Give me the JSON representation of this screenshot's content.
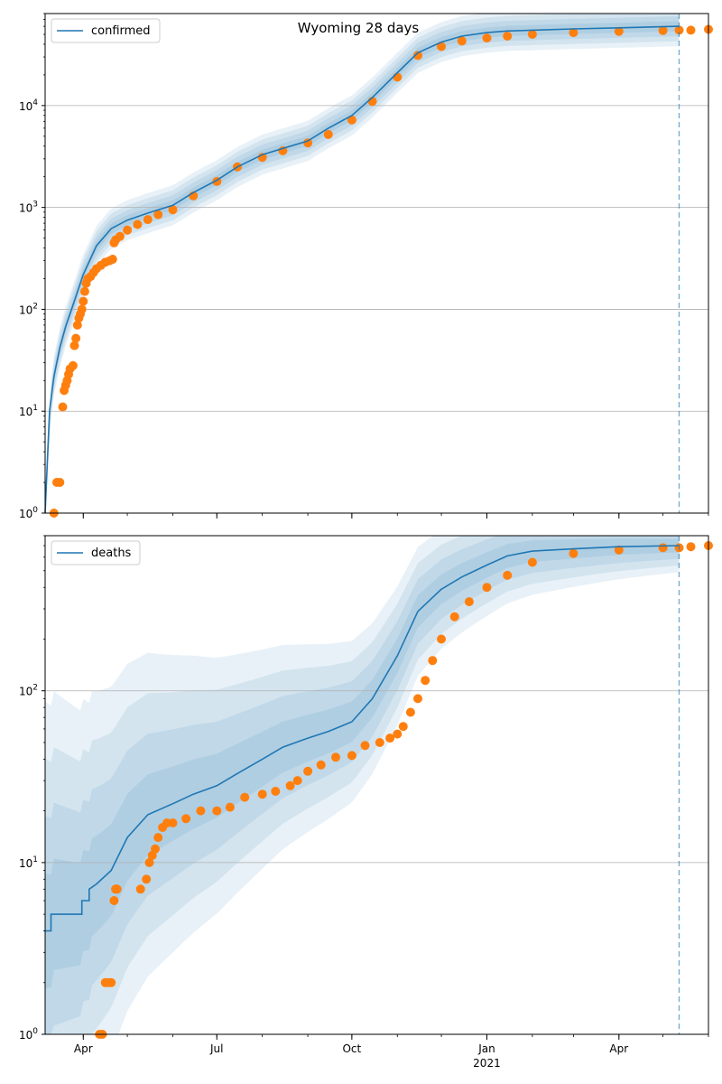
{
  "figure": {
    "title": "Wyoming 28 days"
  },
  "colors": {
    "model": "#1f77b4",
    "observed": "#ff7f0e",
    "band": "#1f77b4",
    "grid": "#b0b0b0",
    "forecast_line": "#1f77b4"
  },
  "chart_data": [
    {
      "type": "line",
      "name": "confirmed-panel",
      "yscale": "log",
      "ylim": [
        1,
        80000
      ],
      "xlim": [
        "2020-03-06",
        "2021-06-01"
      ],
      "grid": "y-major",
      "legend": {
        "placement": "top-left",
        "entries": [
          "confirmed"
        ]
      },
      "y_ticks": [
        {
          "value": 1,
          "base": "10",
          "exp": "0"
        },
        {
          "value": 10,
          "base": "10",
          "exp": "1"
        },
        {
          "value": 100,
          "base": "10",
          "exp": "2"
        },
        {
          "value": 1000,
          "base": "10",
          "exp": "3"
        },
        {
          "value": 10000,
          "base": "10",
          "exp": "4"
        }
      ],
      "forecast_start": "2021-05-12",
      "series": [
        {
          "name": "confirmed",
          "kind": "model",
          "x": [
            "2020-03-06",
            "2020-03-09",
            "2020-03-12",
            "2020-03-16",
            "2020-03-20",
            "2020-03-25",
            "2020-04-01",
            "2020-04-10",
            "2020-04-20",
            "2020-05-01",
            "2020-05-15",
            "2020-06-01",
            "2020-06-15",
            "2020-07-01",
            "2020-07-15",
            "2020-08-01",
            "2020-08-15",
            "2020-09-01",
            "2020-09-15",
            "2020-10-01",
            "2020-10-15",
            "2020-11-01",
            "2020-11-15",
            "2020-12-01",
            "2020-12-15",
            "2021-01-01",
            "2021-01-15",
            "2021-02-01",
            "2021-03-01",
            "2021-04-01",
            "2021-05-12"
          ],
          "values": [
            1,
            10,
            22,
            42,
            68,
            110,
            220,
            420,
            620,
            750,
            880,
            1050,
            1400,
            1850,
            2500,
            3300,
            3800,
            4500,
            6000,
            8000,
            12000,
            21000,
            33000,
            42000,
            48000,
            52000,
            54000,
            55000,
            56500,
            58000,
            60000
          ]
        },
        {
          "name": "observed confirmed",
          "kind": "points",
          "x": [
            "2020-03-12",
            "2020-03-14",
            "2020-03-16",
            "2020-03-18",
            "2020-03-19",
            "2020-03-20",
            "2020-03-21",
            "2020-03-22",
            "2020-03-23",
            "2020-03-25",
            "2020-03-26",
            "2020-03-27",
            "2020-03-28",
            "2020-03-29",
            "2020-03-30",
            "2020-03-31",
            "2020-04-01",
            "2020-04-02",
            "2020-04-03",
            "2020-04-04",
            "2020-04-06",
            "2020-04-08",
            "2020-04-10",
            "2020-04-13",
            "2020-04-16",
            "2020-04-19",
            "2020-04-21",
            "2020-04-22",
            "2020-04-23",
            "2020-04-26",
            "2020-05-01",
            "2020-05-08",
            "2020-05-15",
            "2020-05-22",
            "2020-06-01",
            "2020-06-15",
            "2020-07-01",
            "2020-07-15",
            "2020-08-01",
            "2020-08-15",
            "2020-09-01",
            "2020-09-15",
            "2020-10-01",
            "2020-10-15",
            "2020-11-01",
            "2020-11-15",
            "2020-12-01",
            "2020-12-15",
            "2021-01-01",
            "2021-01-15",
            "2021-02-01",
            "2021-03-01",
            "2021-04-01",
            "2021-05-01",
            "2021-05-12",
            "2021-05-20",
            "2021-06-01"
          ],
          "values": [
            1,
            2,
            2,
            11,
            16,
            18,
            20,
            23,
            26,
            28,
            44,
            52,
            70,
            82,
            90,
            100,
            120,
            150,
            180,
            200,
            210,
            230,
            250,
            270,
            290,
            300,
            310,
            450,
            480,
            520,
            600,
            680,
            760,
            850,
            950,
            1300,
            1800,
            2500,
            3100,
            3600,
            4300,
            5200,
            7200,
            11000,
            19000,
            31000,
            38000,
            43000,
            46000,
            48000,
            50000,
            52000,
            53500,
            54500,
            55000,
            55000,
            56000
          ]
        }
      ]
    },
    {
      "type": "line",
      "name": "deaths-panel",
      "yscale": "log",
      "ylim": [
        1,
        800
      ],
      "xlim": [
        "2020-03-06",
        "2021-06-01"
      ],
      "grid": "y-major",
      "legend": {
        "placement": "top-left",
        "entries": [
          "deaths"
        ]
      },
      "y_ticks": [
        {
          "value": 1,
          "base": "10",
          "exp": "0"
        },
        {
          "value": 10,
          "base": "10",
          "exp": "1"
        },
        {
          "value": 100,
          "base": "10",
          "exp": "2"
        }
      ],
      "x_ticks": [
        {
          "date": "2020-04-01",
          "label": "Apr",
          "sub": ""
        },
        {
          "date": "2020-07-01",
          "label": "Jul",
          "sub": ""
        },
        {
          "date": "2020-10-01",
          "label": "Oct",
          "sub": ""
        },
        {
          "date": "2021-01-01",
          "label": "Jan",
          "sub": "2021"
        },
        {
          "date": "2021-04-01",
          "label": "Apr",
          "sub": ""
        }
      ],
      "forecast_start": "2021-05-12",
      "series": [
        {
          "name": "deaths",
          "kind": "model",
          "x": [
            "2020-03-06",
            "2020-03-10",
            "2020-03-10",
            "2020-03-31",
            "2020-03-31",
            "2020-04-05",
            "2020-04-05",
            "2020-04-10",
            "2020-04-20",
            "2020-05-01",
            "2020-05-15",
            "2020-06-01",
            "2020-06-15",
            "2020-07-01",
            "2020-07-15",
            "2020-08-01",
            "2020-08-15",
            "2020-09-01",
            "2020-09-15",
            "2020-10-01",
            "2020-10-15",
            "2020-11-01",
            "2020-11-15",
            "2020-12-01",
            "2020-12-15",
            "2021-01-01",
            "2021-01-15",
            "2021-02-01",
            "2021-03-01",
            "2021-04-01",
            "2021-05-12"
          ],
          "values": [
            4,
            4,
            5,
            5,
            6,
            6,
            7,
            7.5,
            9,
            14,
            19,
            22,
            25,
            28,
            33,
            40,
            47,
            53,
            58,
            66,
            90,
            160,
            290,
            390,
            460,
            540,
            610,
            650,
            670,
            690,
            700
          ]
        },
        {
          "name": "observed deaths",
          "kind": "points",
          "x": [
            "2020-04-12",
            "2020-04-14",
            "2020-04-16",
            "2020-04-18",
            "2020-04-20",
            "2020-04-22",
            "2020-04-23",
            "2020-04-24",
            "2020-05-10",
            "2020-05-14",
            "2020-05-16",
            "2020-05-18",
            "2020-05-20",
            "2020-05-22",
            "2020-05-25",
            "2020-05-28",
            "2020-06-01",
            "2020-06-10",
            "2020-06-20",
            "2020-07-01",
            "2020-07-10",
            "2020-07-20",
            "2020-08-01",
            "2020-08-10",
            "2020-08-20",
            "2020-08-25",
            "2020-09-01",
            "2020-09-10",
            "2020-09-20",
            "2020-10-01",
            "2020-10-10",
            "2020-10-20",
            "2020-10-27",
            "2020-11-01",
            "2020-11-05",
            "2020-11-10",
            "2020-11-15",
            "2020-11-20",
            "2020-11-25",
            "2020-12-01",
            "2020-12-10",
            "2020-12-20",
            "2021-01-01",
            "2021-01-15",
            "2021-02-01",
            "2021-03-01",
            "2021-04-01",
            "2021-05-01",
            "2021-05-12",
            "2021-05-20",
            "2021-06-01"
          ],
          "values": [
            1,
            1,
            2,
            2,
            2,
            6,
            7,
            7,
            7,
            8,
            10,
            11,
            12,
            14,
            16,
            17,
            17,
            18,
            20,
            20,
            21,
            24,
            25,
            26,
            28,
            30,
            34,
            37,
            41,
            42,
            48,
            50,
            53,
            56,
            62,
            75,
            90,
            115,
            150,
            200,
            270,
            330,
            400,
            470,
            560,
            630,
            660,
            680,
            680,
            690,
            700
          ]
        }
      ]
    }
  ]
}
